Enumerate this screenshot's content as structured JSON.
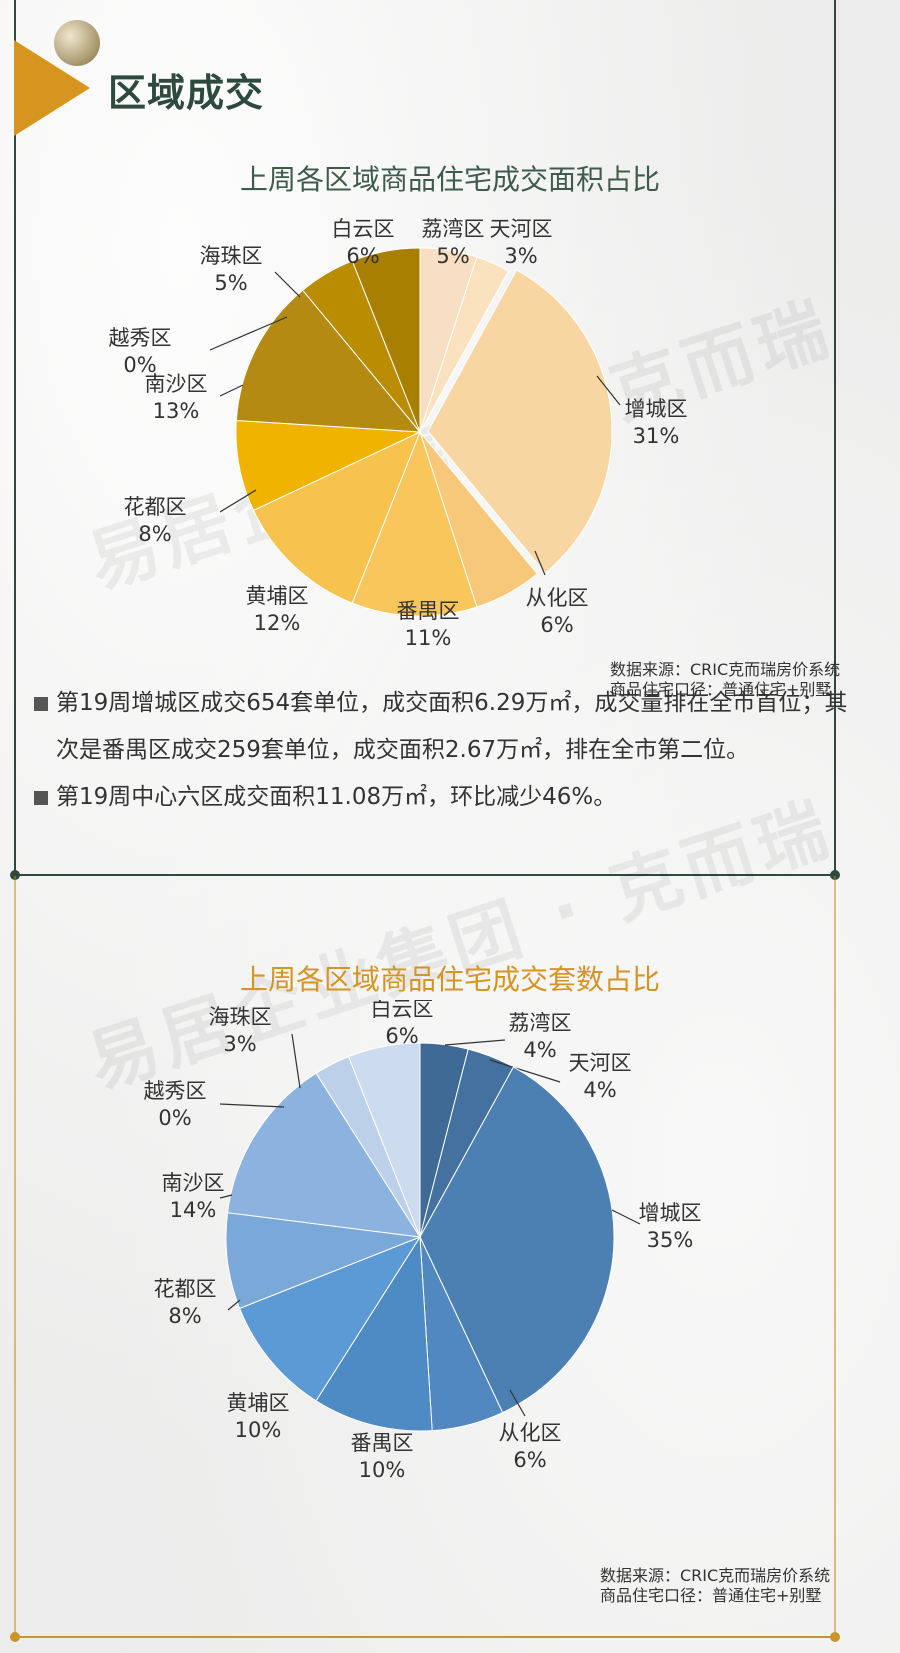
{
  "section": {
    "title": "区域成交"
  },
  "chart_1": {
    "title": "上周各区域商品住宅成交面积占比",
    "source": "数据来源：CRIC克而瑞房价系统",
    "scope": "商品住宅口径：普通住宅+别墅"
  },
  "chart_2": {
    "title": "上周各区域商品住宅成交套数占比",
    "source": "数据来源：CRIC克而瑞房价系统",
    "scope": "商品住宅口径：普通住宅+别墅"
  },
  "notes": [
    "第19周增城区成交654套单位，成交面积6.29万㎡，成交量排在全市首位；其次是番禺区成交259套单位，成交面积2.67万㎡，排在全市第二位。",
    "第19周中心六区成交面积11.08万㎡，环比减少46%。"
  ],
  "watermark": {
    "text": "易居企业集团 · 克而瑞"
  },
  "colors": {
    "area": [
      "#f8dfc3",
      "#f9e2bd",
      "#f8d6a2",
      "#f7c77a",
      "#f8c65a",
      "#f7c24e",
      "#f0b400",
      "#b58a12",
      "#d3a000",
      "#ba8c00",
      "#a87f00"
    ],
    "count": [
      "#3e6a95",
      "#44719f",
      "#4d80b2",
      "#5288c0",
      "#4e8bc5",
      "#5b9ad5",
      "#7aa8d8",
      "#8cb3df",
      "#aac4e6",
      "#bcd0ea",
      "#ccdbee"
    ]
  },
  "chart_data": [
    {
      "type": "pie",
      "title": "上周各区域商品住宅成交面积占比",
      "categories": [
        "荔湾区",
        "天河区",
        "增城区",
        "从化区",
        "番禺区",
        "黄埔区",
        "花都区",
        "南沙区",
        "越秀区",
        "海珠区",
        "白云区"
      ],
      "values": [
        5,
        3,
        31,
        6,
        11,
        12,
        8,
        13,
        0,
        5,
        6
      ],
      "labels": [
        "5%",
        "3%",
        "31%",
        "6%",
        "11%",
        "12%",
        "8%",
        "13%",
        "0%",
        "5%",
        "6%"
      ],
      "unit": "%"
    },
    {
      "type": "pie",
      "title": "上周各区域商品住宅成交套数占比",
      "categories": [
        "荔湾区",
        "天河区",
        "增城区",
        "从化区",
        "番禺区",
        "黄埔区",
        "花都区",
        "南沙区",
        "越秀区",
        "海珠区",
        "白云区"
      ],
      "values": [
        4,
        4,
        35,
        6,
        10,
        10,
        8,
        14,
        0,
        3,
        6
      ],
      "labels": [
        "4%",
        "4%",
        "35%",
        "6%",
        "10%",
        "10%",
        "8%",
        "14%",
        "0%",
        "3%",
        "6%"
      ],
      "unit": "%"
    }
  ]
}
